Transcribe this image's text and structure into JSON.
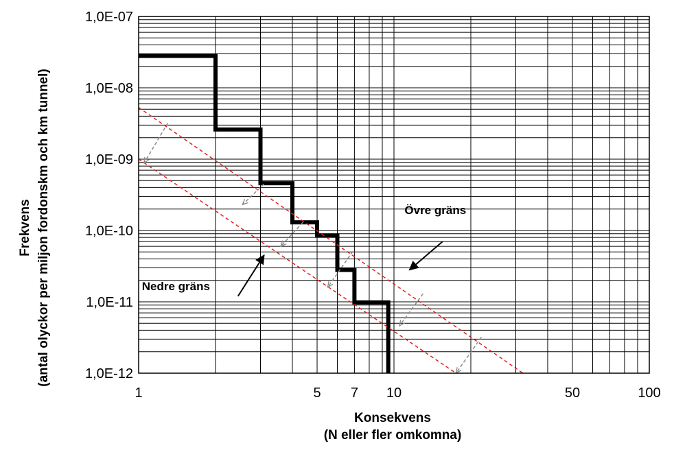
{
  "chart_data": {
    "type": "line",
    "x_scale": "log",
    "y_scale": "log",
    "xlim": [
      1,
      100
    ],
    "ylim": [
      1e-12,
      1e-07
    ],
    "grid": true,
    "x_tick_values": [
      1,
      5,
      7,
      10,
      50,
      100
    ],
    "x_tick_labels": [
      "1",
      "5",
      "7",
      "10",
      "50",
      "100"
    ],
    "y_tick_values": [
      1e-12,
      1e-11,
      1e-10,
      1e-09,
      1e-08,
      1e-07
    ],
    "y_tick_labels": [
      "1,0E-12",
      "1,0E-11",
      "1,0E-10",
      "1,0E-09",
      "1,0E-08",
      "1,0E-07"
    ],
    "xlabel_lines": [
      "Konsekvens",
      "(N eller fler omkomna)"
    ],
    "ylabel_lines": [
      "Frekvens",
      "(antal olyckor per miljon fordonskm och km tunnel)"
    ],
    "series": [
      {
        "style": "step",
        "color": "#000000",
        "x": [
          1,
          2,
          2,
          3,
          3,
          4,
          4,
          5,
          5,
          6,
          6,
          7,
          7,
          9.5,
          9.5
        ],
        "y": [
          2.8e-08,
          2.8e-08,
          2.6e-09,
          2.6e-09,
          4.6e-10,
          4.6e-10,
          1.3e-10,
          1.3e-10,
          8.5e-11,
          8.5e-11,
          2.8e-11,
          2.8e-11,
          9.8e-12,
          9.8e-12,
          1e-12
        ]
      },
      {
        "name": "Övre gräns",
        "style": "dashed",
        "color": "#e02020",
        "x": [
          1,
          32
        ],
        "y": [
          5.3e-09,
          1e-12
        ]
      },
      {
        "name": "Nedre gräns",
        "style": "dashed",
        "color": "#e02020",
        "x": [
          1,
          17.5
        ],
        "y": [
          1e-09,
          1e-12
        ]
      }
    ],
    "shift_arrows": {
      "color": "#8c8c8c",
      "style": "dashed",
      "items": [
        {
          "from": [
            1.3,
            3.2e-09
          ],
          "to": [
            1.05,
            8.8e-10
          ]
        },
        {
          "from": [
            3.1,
            4.5e-10
          ],
          "to": [
            2.55,
            2.3e-10
          ]
        },
        {
          "from": [
            4.4,
            1.3e-10
          ],
          "to": [
            3.6,
            6e-11
          ]
        },
        {
          "from": [
            6.9,
            5.1e-11
          ],
          "to": [
            5.5,
            1.6e-11
          ]
        },
        {
          "from": [
            13,
            1.3e-11
          ],
          "to": [
            10.5,
            4.6e-12
          ]
        },
        {
          "from": [
            22,
            3.2e-12
          ],
          "to": [
            17.5,
            1e-12
          ]
        }
      ]
    },
    "annotations": [
      {
        "text": "Övre gräns",
        "x": 11,
        "y": 1.7e-10,
        "arrow_from": [
          15.5,
          7e-11
        ],
        "arrow_to": [
          11.5,
          2.8e-11
        ]
      },
      {
        "text": "Nedre gräns",
        "x": 1.03,
        "y": 1.45e-11,
        "arrow_from": [
          2.45,
          1.2e-11
        ],
        "arrow_to": [
          3.1,
          4.5e-11
        ]
      }
    ]
  }
}
